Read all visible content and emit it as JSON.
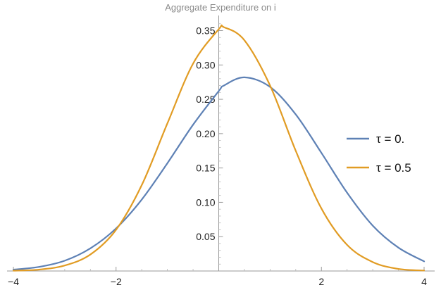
{
  "chart_data": {
    "type": "line",
    "title": "Aggregate Expenditure on i",
    "xlabel": "",
    "ylabel": "",
    "xlim": [
      -4,
      4
    ],
    "ylim": [
      0,
      0.37
    ],
    "x_ticks": [
      -4,
      -2,
      2,
      4
    ],
    "x_tick_labels": [
      "−4",
      "−2",
      "2",
      "4"
    ],
    "y_ticks": [
      0.05,
      0.1,
      0.15,
      0.2,
      0.25,
      0.3,
      0.35
    ],
    "y_tick_labels": [
      "0.05",
      "0.10",
      "0.15",
      "0.20",
      "0.25",
      "0.30",
      "0.35"
    ],
    "grid": false,
    "legend_position": "right",
    "x": [
      -4,
      -3.5,
      -3,
      -2.5,
      -2,
      -1.5,
      -1,
      -0.5,
      0,
      0.1,
      0.5,
      1,
      1.5,
      2,
      2.5,
      3,
      3.5,
      4
    ],
    "series": [
      {
        "name": "τ = 0.",
        "color": "#5e81b5",
        "values": [
          0.002,
          0.006,
          0.015,
          0.033,
          0.062,
          0.104,
          0.157,
          0.213,
          0.262,
          0.27,
          0.282,
          0.268,
          0.228,
          0.172,
          0.114,
          0.066,
          0.034,
          0.014
        ]
      },
      {
        "name": "τ = 0.5",
        "color": "#e19c24",
        "values": [
          0.0005,
          0.002,
          0.008,
          0.024,
          0.06,
          0.125,
          0.215,
          0.302,
          0.352,
          0.355,
          0.336,
          0.27,
          0.175,
          0.091,
          0.038,
          0.013,
          0.003,
          0.0007
        ]
      }
    ]
  }
}
